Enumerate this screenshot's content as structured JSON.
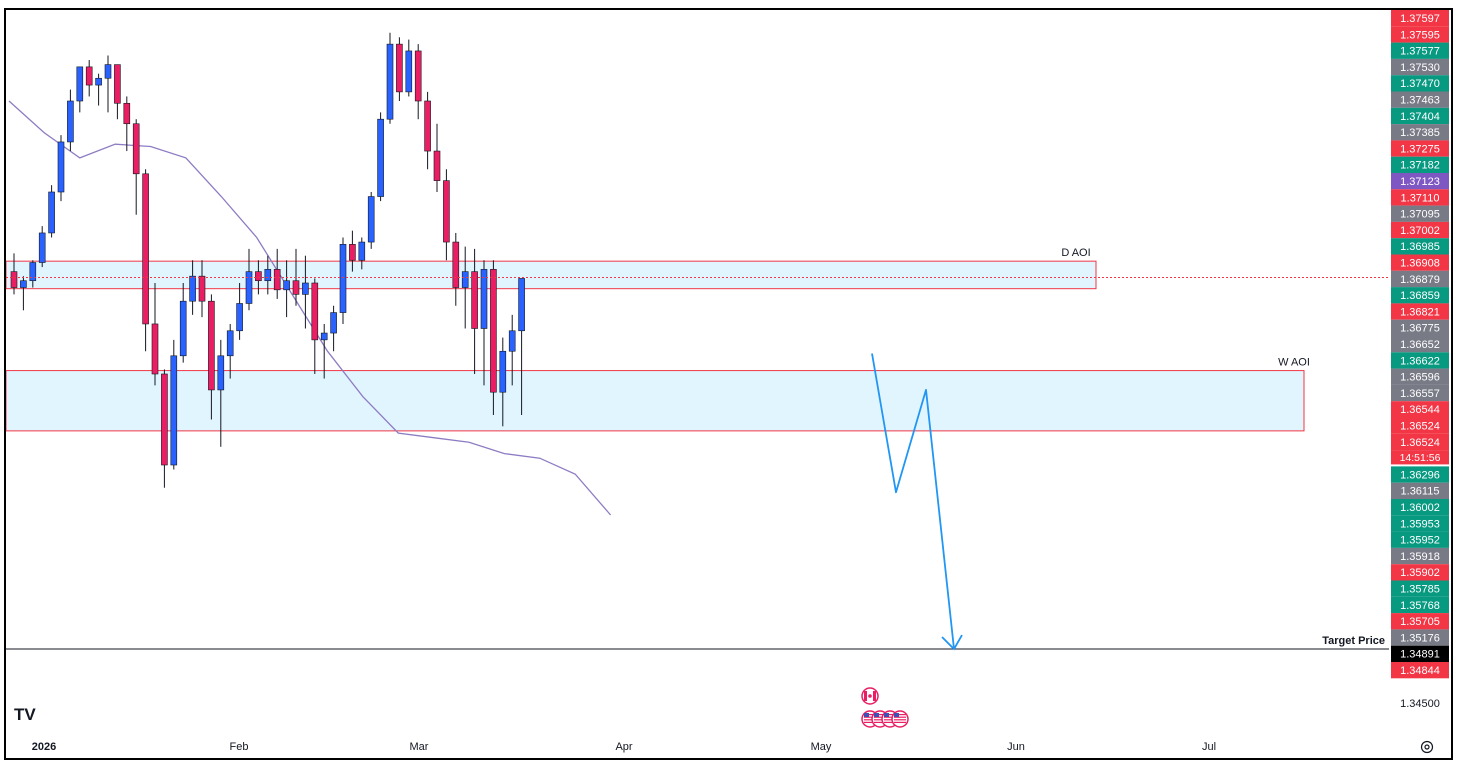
{
  "chart_data": {
    "type": "candlestick",
    "title": "",
    "xlabel": "",
    "ylabel": "",
    "ylim": [
      1.345,
      1.377
    ],
    "y_axis_labels": [
      {
        "value": "1.37597",
        "color": "#f23645"
      },
      {
        "value": "1.37595",
        "color": "#f23645"
      },
      {
        "value": "1.37577",
        "color": "#089981"
      },
      {
        "value": "1.37530",
        "color": "#787b86"
      },
      {
        "value": "1.37470",
        "color": "#089981"
      },
      {
        "value": "1.37463",
        "color": "#787b86"
      },
      {
        "value": "1.37404",
        "color": "#089981"
      },
      {
        "value": "1.37385",
        "color": "#787b86"
      },
      {
        "value": "1.37275",
        "color": "#f23645"
      },
      {
        "value": "1.37182",
        "color": "#089981"
      },
      {
        "value": "1.37123",
        "color": "#7e57c2"
      },
      {
        "value": "1.37110",
        "color": "#f23645"
      },
      {
        "value": "1.37095",
        "color": "#787b86"
      },
      {
        "value": "1.37002",
        "color": "#f23645"
      },
      {
        "value": "1.36985",
        "color": "#089981"
      },
      {
        "value": "1.36908",
        "color": "#f23645"
      },
      {
        "value": "1.36879",
        "color": "#787b86"
      },
      {
        "value": "1.36859",
        "color": "#089981"
      },
      {
        "value": "1.36821",
        "color": "#f23645"
      },
      {
        "value": "1.36775",
        "color": "#787b86"
      },
      {
        "value": "1.36652",
        "color": "#787b86"
      },
      {
        "value": "1.36622",
        "color": "#089981"
      },
      {
        "value": "1.36596",
        "color": "#787b86"
      },
      {
        "value": "1.36557",
        "color": "#787b86"
      },
      {
        "value": "1.36544",
        "color": "#f23645"
      },
      {
        "value": "1.36524",
        "color": "#f23645"
      },
      {
        "value": "1.36524",
        "color": "#f23645",
        "sub": "14:51:56"
      },
      {
        "value": "1.36296",
        "color": "#089981"
      },
      {
        "value": "1.36115",
        "color": "#787b86"
      },
      {
        "value": "1.36002",
        "color": "#089981"
      },
      {
        "value": "1.35953",
        "color": "#089981"
      },
      {
        "value": "1.35952",
        "color": "#089981"
      },
      {
        "value": "1.35918",
        "color": "#787b86"
      },
      {
        "value": "1.35902",
        "color": "#f23645"
      },
      {
        "value": "1.35785",
        "color": "#089981"
      },
      {
        "value": "1.35768",
        "color": "#089981"
      },
      {
        "value": "1.35705",
        "color": "#f23645"
      },
      {
        "value": "1.35176",
        "color": "#787b86"
      },
      {
        "value": "1.34891",
        "color": "#000000"
      },
      {
        "value": "1.34844",
        "color": "#f23645"
      }
    ],
    "y_tick": "1.34500",
    "x_labels": [
      {
        "label": "2026",
        "bold": true
      },
      {
        "label": "Feb",
        "bold": false
      },
      {
        "label": "Mar",
        "bold": false
      },
      {
        "label": "Apr",
        "bold": false
      },
      {
        "label": "May",
        "bold": false
      },
      {
        "label": "Jun",
        "bold": false
      },
      {
        "label": "Jul",
        "bold": false
      }
    ],
    "colors": {
      "up": "#2962ff",
      "down": "#e91e63",
      "ma": "#8e7cc3",
      "zone_fill": "#e1f5fe",
      "zone_border": "#f23645",
      "arrow": "#2196f3"
    },
    "zones": [
      {
        "label": "D AOI",
        "top": 1.36596,
        "bottom": 1.36475
      },
      {
        "label": "W AOI",
        "top": 1.36115,
        "bottom": 1.3585
      }
    ],
    "current_price": 1.36524,
    "target": {
      "label": "Target Price",
      "price": 1.34891
    },
    "projection": [
      1.3619,
      1.3558,
      1.3603,
      1.34891
    ],
    "moving_average": [
      1.373,
      1.3716,
      1.3705,
      1.3711,
      1.371,
      1.3705,
      1.3688,
      1.367,
      1.3645,
      1.362,
      1.36,
      1.3584,
      1.3582,
      1.358,
      1.3575,
      1.3573,
      1.3566,
      1.3548
    ],
    "candles": [
      [
        1.3655,
        1.3663,
        1.3645,
        1.3648
      ],
      [
        1.3648,
        1.3653,
        1.3638,
        1.3651
      ],
      [
        1.3651,
        1.366,
        1.3648,
        1.3659
      ],
      [
        1.3659,
        1.3675,
        1.3657,
        1.3672
      ],
      [
        1.3672,
        1.3693,
        1.367,
        1.369
      ],
      [
        1.369,
        1.3715,
        1.3686,
        1.3712
      ],
      [
        1.3712,
        1.3735,
        1.3708,
        1.373
      ],
      [
        1.373,
        1.3745,
        1.3725,
        1.3745
      ],
      [
        1.3745,
        1.3748,
        1.3732,
        1.3737
      ],
      [
        1.3737,
        1.3742,
        1.3728,
        1.374
      ],
      [
        1.374,
        1.375,
        1.3725,
        1.3746
      ],
      [
        1.3746,
        1.3746,
        1.3722,
        1.3729
      ],
      [
        1.3729,
        1.3732,
        1.3708,
        1.372
      ],
      [
        1.372,
        1.3722,
        1.368,
        1.3698
      ],
      [
        1.3698,
        1.37,
        1.362,
        1.3632
      ],
      [
        1.3632,
        1.365,
        1.3605,
        1.361
      ],
      [
        1.361,
        1.3612,
        1.356,
        1.357
      ],
      [
        1.357,
        1.3625,
        1.3568,
        1.3618
      ],
      [
        1.3618,
        1.365,
        1.3615,
        1.3642
      ],
      [
        1.3642,
        1.366,
        1.3636,
        1.3653
      ],
      [
        1.3653,
        1.366,
        1.3635,
        1.3642
      ],
      [
        1.3642,
        1.3645,
        1.359,
        1.3603
      ],
      [
        1.3603,
        1.3625,
        1.3578,
        1.3618
      ],
      [
        1.3618,
        1.3632,
        1.3608,
        1.3629
      ],
      [
        1.3629,
        1.365,
        1.3625,
        1.3641
      ],
      [
        1.3641,
        1.3665,
        1.3638,
        1.3655
      ],
      [
        1.3655,
        1.366,
        1.3645,
        1.3651
      ],
      [
        1.3651,
        1.3662,
        1.3645,
        1.3656
      ],
      [
        1.3656,
        1.3665,
        1.3643,
        1.3647
      ],
      [
        1.3647,
        1.366,
        1.3635,
        1.3651
      ],
      [
        1.3651,
        1.3665,
        1.364,
        1.3645
      ],
      [
        1.3645,
        1.3662,
        1.363,
        1.365
      ],
      [
        1.365,
        1.3652,
        1.361,
        1.3625
      ],
      [
        1.3625,
        1.3632,
        1.3608,
        1.3628
      ],
      [
        1.3628,
        1.364,
        1.362,
        1.3637
      ],
      [
        1.3637,
        1.367,
        1.3632,
        1.3667
      ],
      [
        1.3667,
        1.3673,
        1.3655,
        1.366
      ],
      [
        1.366,
        1.367,
        1.3656,
        1.3668
      ],
      [
        1.3668,
        1.369,
        1.3665,
        1.3688
      ],
      [
        1.3688,
        1.3725,
        1.3686,
        1.3722
      ],
      [
        1.3722,
        1.376,
        1.372,
        1.3755
      ],
      [
        1.3755,
        1.3758,
        1.373,
        1.3734
      ],
      [
        1.3734,
        1.3757,
        1.3732,
        1.3752
      ],
      [
        1.3752,
        1.3755,
        1.3722,
        1.373
      ],
      [
        1.373,
        1.3734,
        1.37,
        1.3708
      ],
      [
        1.3708,
        1.372,
        1.369,
        1.3695
      ],
      [
        1.3695,
        1.37,
        1.366,
        1.3668
      ],
      [
        1.3668,
        1.3672,
        1.364,
        1.3648
      ],
      [
        1.3648,
        1.3666,
        1.363,
        1.3655
      ],
      [
        1.3655,
        1.3665,
        1.361,
        1.363
      ],
      [
        1.363,
        1.366,
        1.3605,
        1.3656
      ],
      [
        1.3656,
        1.366,
        1.3592,
        1.3602
      ],
      [
        1.3602,
        1.3626,
        1.3587,
        1.362
      ],
      [
        1.362,
        1.3636,
        1.3605,
        1.3629
      ],
      [
        1.3629,
        1.3652,
        1.3592,
        1.3652
      ]
    ]
  },
  "markers": {
    "ca_flag": "canada-flag-icon",
    "us_flags": "us-flag-icons"
  },
  "logo": "TV"
}
